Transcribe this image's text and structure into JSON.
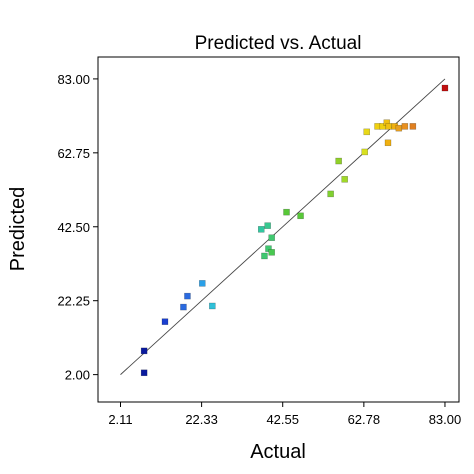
{
  "chart_data": {
    "type": "scatter",
    "title": "Predicted vs. Actual",
    "xlabel": "Actual",
    "ylabel": "Predicted",
    "xlim": [
      -3.5,
      86.5
    ],
    "ylim": [
      -5.5,
      89.0
    ],
    "x_ticks": [
      2.11,
      22.33,
      42.55,
      62.78,
      83.0
    ],
    "x_tick_labels": [
      "2.11",
      "22.33",
      "42.55",
      "62.78",
      "83.00"
    ],
    "y_ticks": [
      2.0,
      22.25,
      42.5,
      62.75,
      83.0
    ],
    "y_tick_labels": [
      "2.00",
      "22.25",
      "42.50",
      "62.75",
      "83.00"
    ],
    "grid": false,
    "reference_line": {
      "from": [
        2.11,
        2.0
      ],
      "to": [
        83.0,
        83.0
      ],
      "color": "#444444"
    },
    "points": [
      {
        "x": 8.0,
        "y": 2.5,
        "color": "#0a1a9e"
      },
      {
        "x": 8.0,
        "y": 8.5,
        "color": "#0a1a9e"
      },
      {
        "x": 13.2,
        "y": 16.5,
        "color": "#1a3fd0"
      },
      {
        "x": 17.8,
        "y": 20.5,
        "color": "#2a6ae0"
      },
      {
        "x": 18.8,
        "y": 23.5,
        "color": "#2a6ae0"
      },
      {
        "x": 22.5,
        "y": 27.0,
        "color": "#2aa0e8"
      },
      {
        "x": 25.0,
        "y": 20.8,
        "color": "#30c0d8"
      },
      {
        "x": 37.2,
        "y": 41.8,
        "color": "#30c8a0"
      },
      {
        "x": 38.8,
        "y": 42.8,
        "color": "#38c890"
      },
      {
        "x": 39.8,
        "y": 39.5,
        "color": "#40c870"
      },
      {
        "x": 39.0,
        "y": 36.5,
        "color": "#40c870"
      },
      {
        "x": 38.0,
        "y": 34.5,
        "color": "#40c870"
      },
      {
        "x": 39.8,
        "y": 35.5,
        "color": "#48c850"
      },
      {
        "x": 43.5,
        "y": 46.5,
        "color": "#58c838"
      },
      {
        "x": 47.0,
        "y": 45.5,
        "color": "#58c838"
      },
      {
        "x": 54.5,
        "y": 51.5,
        "color": "#80d030"
      },
      {
        "x": 56.5,
        "y": 60.5,
        "color": "#90d028"
      },
      {
        "x": 58.0,
        "y": 55.5,
        "color": "#a0d828"
      },
      {
        "x": 63.0,
        "y": 63.0,
        "color": "#d8e020"
      },
      {
        "x": 63.5,
        "y": 68.5,
        "color": "#e8d818"
      },
      {
        "x": 66.2,
        "y": 70.0,
        "color": "#f0d010"
      },
      {
        "x": 67.5,
        "y": 70.0,
        "color": "#f0d010"
      },
      {
        "x": 68.5,
        "y": 71.0,
        "color": "#f0c010"
      },
      {
        "x": 69.0,
        "y": 70.0,
        "color": "#f0c010"
      },
      {
        "x": 68.8,
        "y": 65.5,
        "color": "#f0b010"
      },
      {
        "x": 70.5,
        "y": 70.0,
        "color": "#f0b010"
      },
      {
        "x": 71.5,
        "y": 69.5,
        "color": "#e8a020"
      },
      {
        "x": 73.0,
        "y": 70.0,
        "color": "#e89020"
      },
      {
        "x": 75.0,
        "y": 70.0,
        "color": "#e08020"
      },
      {
        "x": 83.0,
        "y": 80.5,
        "color": "#c01010"
      }
    ]
  }
}
